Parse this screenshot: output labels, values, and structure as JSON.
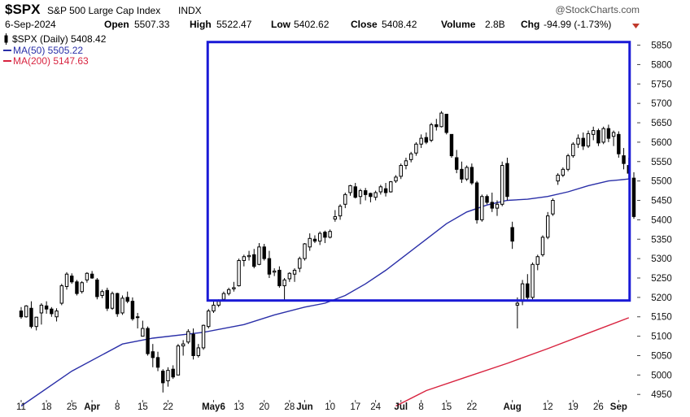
{
  "header": {
    "symbol": "$SPX",
    "name": "S&P 500 Large Cap Index",
    "exchange": "INDX",
    "watermark": "@StockCharts.com",
    "date": "6-Sep-2024",
    "open_label": "Open",
    "open": "5507.33",
    "high_label": "High",
    "high": "5522.47",
    "low_label": "Low",
    "low": "5402.62",
    "close_label": "Close",
    "close": "5408.42",
    "volume_label": "Volume",
    "volume": "2.8B",
    "chg_label": "Chg",
    "chg": "-94.99 (-1.73%)"
  },
  "legend": {
    "price": "$SPX (Daily) 5408.42",
    "ma50": "MA(50) 5505.22",
    "ma200": "MA(200) 5147.63"
  },
  "colors": {
    "candle": "#000000",
    "ma50": "#2a2fa8",
    "ma200": "#d8233f",
    "box": "#1a1ad6",
    "down_arrow": "#c0392b"
  },
  "chart_data": {
    "type": "candlestick",
    "ylim": [
      4940,
      5870
    ],
    "y_ticks": [
      4950,
      5000,
      5050,
      5100,
      5150,
      5200,
      5250,
      5300,
      5350,
      5400,
      5450,
      5500,
      5550,
      5600,
      5650,
      5700,
      5750,
      5800,
      5850
    ],
    "y_axis_side": "right",
    "x_tick_labels": [
      {
        "label": "11",
        "i": 0
      },
      {
        "label": "18",
        "i": 5
      },
      {
        "label": "25",
        "i": 10
      },
      {
        "label": "Apr",
        "i": 14,
        "bold": true
      },
      {
        "label": "8",
        "i": 19
      },
      {
        "label": "15",
        "i": 24
      },
      {
        "label": "22",
        "i": 29
      },
      {
        "label": "May6",
        "i": 38,
        "bold": true
      },
      {
        "label": "13",
        "i": 43
      },
      {
        "label": "20",
        "i": 48
      },
      {
        "label": "28",
        "i": 53
      },
      {
        "label": "Jun",
        "i": 56,
        "bold": true
      },
      {
        "label": "10",
        "i": 61
      },
      {
        "label": "17",
        "i": 66
      },
      {
        "label": "24",
        "i": 70
      },
      {
        "label": "Jul",
        "i": 75,
        "bold": true
      },
      {
        "label": "8",
        "i": 79
      },
      {
        "label": "15",
        "i": 84
      },
      {
        "label": "22",
        "i": 89
      },
      {
        "label": "Aug",
        "i": 97,
        "bold": true
      },
      {
        "label": "12",
        "i": 104
      },
      {
        "label": "19",
        "i": 109
      },
      {
        "label": "26",
        "i": 114
      },
      {
        "label": "Sep",
        "i": 118,
        "bold": true
      }
    ],
    "ohlc": [
      [
        5165,
        5175,
        5145,
        5150
      ],
      [
        5150,
        5180,
        5148,
        5178
      ],
      [
        5172,
        5190,
        5120,
        5125
      ],
      [
        5125,
        5150,
        5115,
        5149
      ],
      [
        5160,
        5185,
        5130,
        5180
      ],
      [
        5178,
        5190,
        5158,
        5170
      ],
      [
        5170,
        5175,
        5150,
        5158
      ],
      [
        5150,
        5172,
        5138,
        5165
      ],
      [
        5185,
        5235,
        5180,
        5230
      ],
      [
        5228,
        5265,
        5220,
        5260
      ],
      [
        5255,
        5262,
        5235,
        5240
      ],
      [
        5240,
        5245,
        5205,
        5210
      ],
      [
        5215,
        5242,
        5210,
        5238
      ],
      [
        5245,
        5265,
        5238,
        5262
      ],
      [
        5260,
        5268,
        5248,
        5250
      ],
      [
        5245,
        5250,
        5195,
        5202
      ],
      [
        5205,
        5220,
        5198,
        5215
      ],
      [
        5218,
        5225,
        5165,
        5172
      ],
      [
        5172,
        5215,
        5168,
        5210
      ],
      [
        5210,
        5212,
        5150,
        5158
      ],
      [
        5160,
        5205,
        5155,
        5198
      ],
      [
        5200,
        5215,
        5185,
        5190
      ],
      [
        5190,
        5200,
        5140,
        5145
      ],
      [
        5150,
        5160,
        5120,
        5150
      ],
      [
        5100,
        5140,
        5100,
        5120
      ],
      [
        5120,
        5125,
        5050,
        5055
      ],
      [
        5060,
        5080,
        5020,
        5045
      ],
      [
        5045,
        5060,
        5010,
        5020
      ],
      [
        5010,
        5015,
        4955,
        4980
      ],
      [
        4985,
        5020,
        4970,
        5012
      ],
      [
        5015,
        5025,
        4990,
        4995
      ],
      [
        5000,
        5080,
        5000,
        5075
      ],
      [
        5075,
        5090,
        5050,
        5080
      ],
      [
        5085,
        5118,
        5080,
        5112
      ],
      [
        5105,
        5120,
        5040,
        5050
      ],
      [
        5050,
        5080,
        5045,
        5070
      ],
      [
        5070,
        5130,
        5065,
        5128
      ],
      [
        5125,
        5170,
        5120,
        5165
      ],
      [
        5165,
        5190,
        5160,
        5180
      ],
      [
        5180,
        5195,
        5175,
        5190
      ],
      [
        5195,
        5215,
        5190,
        5210
      ],
      [
        5210,
        5225,
        5205,
        5220
      ],
      [
        5222,
        5240,
        5215,
        5225
      ],
      [
        5230,
        5300,
        5228,
        5295
      ],
      [
        5295,
        5310,
        5280,
        5305
      ],
      [
        5305,
        5320,
        5295,
        5308
      ],
      [
        5310,
        5325,
        5275,
        5280
      ],
      [
        5285,
        5340,
        5283,
        5330
      ],
      [
        5330,
        5338,
        5295,
        5300
      ],
      [
        5300,
        5320,
        5250,
        5260
      ],
      [
        5265,
        5275,
        5255,
        5268
      ],
      [
        5270,
        5280,
        5225,
        5230
      ],
      [
        5230,
        5250,
        5190,
        5245
      ],
      [
        5248,
        5265,
        5240,
        5262
      ],
      [
        5260,
        5275,
        5240,
        5270
      ],
      [
        5275,
        5305,
        5265,
        5300
      ],
      [
        5300,
        5340,
        5295,
        5338
      ],
      [
        5330,
        5365,
        5320,
        5352
      ],
      [
        5350,
        5360,
        5340,
        5345
      ],
      [
        5345,
        5370,
        5335,
        5365
      ],
      [
        5368,
        5372,
        5340,
        5355
      ],
      [
        5355,
        5375,
        5352,
        5370
      ],
      [
        5402,
        5425,
        5395,
        5408
      ],
      [
        5410,
        5440,
        5400,
        5435
      ],
      [
        5440,
        5470,
        5430,
        5465
      ],
      [
        5470,
        5490,
        5462,
        5488
      ],
      [
        5485,
        5495,
        5455,
        5458
      ],
      [
        5460,
        5480,
        5440,
        5475
      ],
      [
        5475,
        5482,
        5450,
        5465
      ],
      [
        5468,
        5470,
        5445,
        5460
      ],
      [
        5458,
        5475,
        5450,
        5470
      ],
      [
        5472,
        5490,
        5465,
        5485
      ],
      [
        5480,
        5495,
        5460,
        5470
      ],
      [
        5472,
        5500,
        5470,
        5498
      ],
      [
        5500,
        5515,
        5495,
        5510
      ],
      [
        5512,
        5545,
        5505,
        5540
      ],
      [
        5540,
        5560,
        5530,
        5552
      ],
      [
        5555,
        5575,
        5548,
        5570
      ],
      [
        5572,
        5600,
        5565,
        5595
      ],
      [
        5595,
        5620,
        5585,
        5610
      ],
      [
        5612,
        5625,
        5595,
        5600
      ],
      [
        5605,
        5650,
        5600,
        5645
      ],
      [
        5645,
        5660,
        5630,
        5640
      ],
      [
        5640,
        5680,
        5638,
        5675
      ],
      [
        5672,
        5672,
        5620,
        5625
      ],
      [
        5620,
        5620,
        5560,
        5565
      ],
      [
        5560,
        5580,
        5520,
        5530
      ],
      [
        5530,
        5550,
        5495,
        5505
      ],
      [
        5505,
        5540,
        5500,
        5535
      ],
      [
        5535,
        5545,
        5490,
        5495
      ],
      [
        5495,
        5500,
        5390,
        5400
      ],
      [
        5400,
        5465,
        5395,
        5460
      ],
      [
        5460,
        5465,
        5440,
        5445
      ],
      [
        5445,
        5470,
        5420,
        5430
      ],
      [
        5430,
        5450,
        5410,
        5440
      ],
      [
        5440,
        5550,
        5435,
        5540
      ],
      [
        5545,
        5560,
        5450,
        5460
      ],
      [
        5380,
        5395,
        5325,
        5345
      ],
      [
        5180,
        5200,
        5120,
        5185
      ],
      [
        5190,
        5245,
        5180,
        5235
      ],
      [
        5235,
        5260,
        5195,
        5200
      ],
      [
        5200,
        5290,
        5195,
        5285
      ],
      [
        5285,
        5310,
        5270,
        5305
      ],
      [
        5310,
        5360,
        5305,
        5355
      ],
      [
        5355,
        5420,
        5350,
        5410
      ],
      [
        5415,
        5455,
        5410,
        5450
      ],
      [
        5500,
        5520,
        5490,
        5515
      ],
      [
        5515,
        5535,
        5510,
        5530
      ],
      [
        5530,
        5570,
        5525,
        5565
      ],
      [
        5565,
        5600,
        5560,
        5595
      ],
      [
        5595,
        5620,
        5585,
        5610
      ],
      [
        5610,
        5625,
        5580,
        5590
      ],
      [
        5590,
        5630,
        5585,
        5622
      ],
      [
        5620,
        5640,
        5605,
        5630
      ],
      [
        5630,
        5635,
        5590,
        5598
      ],
      [
        5600,
        5640,
        5595,
        5635
      ],
      [
        5635,
        5645,
        5600,
        5610
      ],
      [
        5615,
        5630,
        5590,
        5625
      ],
      [
        5620,
        5628,
        5560,
        5570
      ],
      [
        5565,
        5585,
        5530,
        5545
      ],
      [
        5540,
        5560,
        5505,
        5520
      ],
      [
        5507.33,
        5522.47,
        5402.62,
        5408.42
      ]
    ],
    "ma50": [
      [
        0,
        4920
      ],
      [
        10,
        5010
      ],
      [
        20,
        5080
      ],
      [
        26,
        5095
      ],
      [
        36,
        5110
      ],
      [
        44,
        5130
      ],
      [
        50,
        5155
      ],
      [
        56,
        5175
      ],
      [
        60,
        5185
      ],
      [
        64,
        5205
      ],
      [
        68,
        5235
      ],
      [
        72,
        5270
      ],
      [
        76,
        5310
      ],
      [
        80,
        5350
      ],
      [
        84,
        5390
      ],
      [
        88,
        5420
      ],
      [
        92,
        5438
      ],
      [
        96,
        5450
      ],
      [
        100,
        5453
      ],
      [
        104,
        5460
      ],
      [
        108,
        5472
      ],
      [
        112,
        5488
      ],
      [
        116,
        5500
      ],
      [
        120,
        5505.22
      ]
    ],
    "ma200": [
      [
        74,
        4920
      ],
      [
        80,
        4960
      ],
      [
        88,
        4995
      ],
      [
        96,
        5030
      ],
      [
        104,
        5068
      ],
      [
        112,
        5108
      ],
      [
        120,
        5147.63
      ]
    ],
    "highlight_box": {
      "i_start": 37,
      "i_end": 120,
      "y_low": 5192,
      "y_high": 5858
    }
  }
}
